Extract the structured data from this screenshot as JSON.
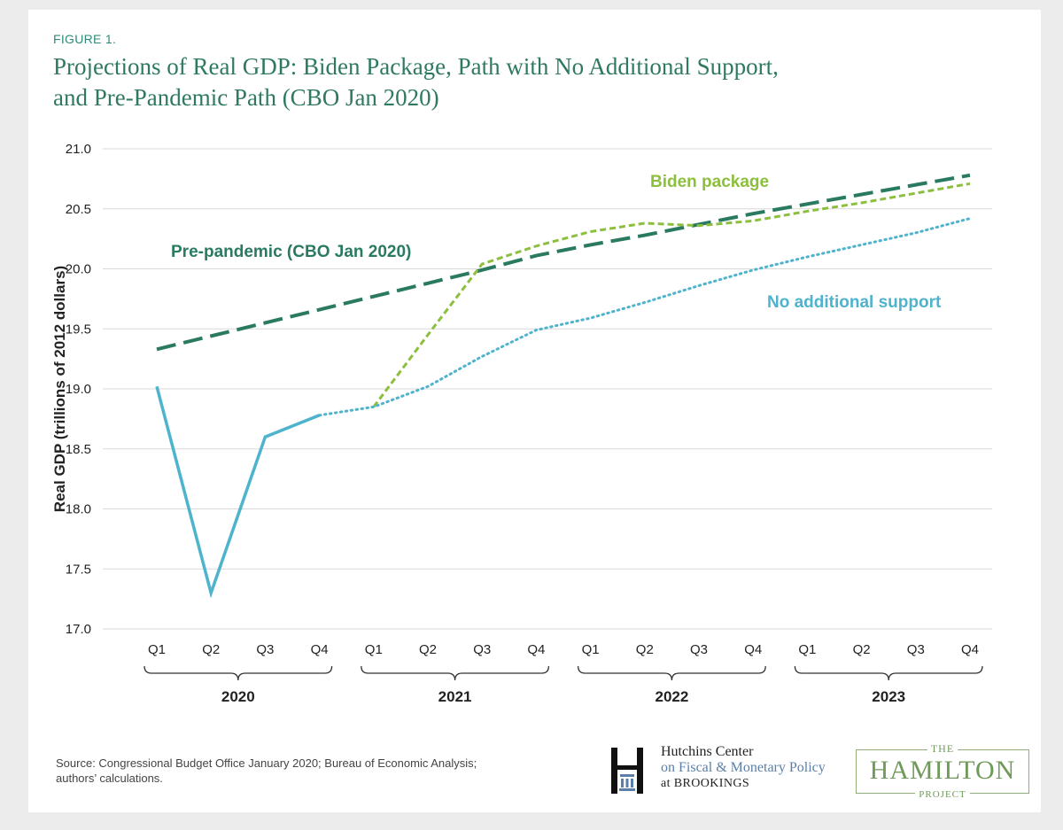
{
  "figure_label": "FIGURE 1.",
  "title_line1": "Projections of Real GDP: Biden Package, Path with No Additional Support,",
  "title_line2": "and Pre-Pandemic Path (CBO Jan 2020)",
  "source_line1": "Source: Congressional Budget Office January 2020; Bureau of Economic Analysis;",
  "source_line2": "authors’ calculations.",
  "logos": {
    "hutchins_line1": "Hutchins Center",
    "hutchins_line2": "on Fiscal & Monetary Policy",
    "hutchins_line3": "at BROOKINGS",
    "hamilton_the": "THE",
    "hamilton_name": "HAMILTON",
    "hamilton_project": "PROJECT"
  },
  "colors": {
    "prepandemic": "#2a7a62",
    "biden": "#8dbf3f",
    "no_support": "#4eb3cc",
    "grid": "#d9d9d9",
    "axis_text": "#222222"
  },
  "chart_data": {
    "type": "line",
    "title": "Projections of Real GDP: Biden Package, Path with No Additional Support, and Pre-Pandemic Path (CBO Jan 2020)",
    "xlabel": "",
    "ylabel": "Real GDP (trillions of 2012 dollars)",
    "ylim": [
      17.0,
      21.0
    ],
    "yticks": [
      "17.0",
      "17.5",
      "18.0",
      "18.5",
      "19.0",
      "19.5",
      "20.0",
      "20.5",
      "21.0"
    ],
    "grid": true,
    "categories": [
      "Q1",
      "Q2",
      "Q3",
      "Q4",
      "Q1",
      "Q2",
      "Q3",
      "Q4",
      "Q1",
      "Q2",
      "Q3",
      "Q4",
      "Q1",
      "Q2",
      "Q3",
      "Q4"
    ],
    "years": [
      "2020",
      "2021",
      "2022",
      "2023"
    ],
    "series": [
      {
        "name": "Pre-pandemic (CBO Jan 2020)",
        "style": "longdash",
        "values": [
          19.33,
          19.44,
          19.55,
          19.66,
          19.77,
          19.88,
          19.99,
          20.11,
          20.2,
          20.28,
          20.37,
          20.46,
          20.54,
          20.62,
          20.7,
          20.78
        ]
      },
      {
        "name": "Biden package",
        "style": "dash",
        "values": [
          null,
          null,
          null,
          null,
          18.85,
          19.45,
          20.04,
          20.19,
          20.31,
          20.38,
          20.36,
          20.4,
          20.48,
          20.55,
          20.63,
          20.71
        ]
      },
      {
        "name": "No additional support",
        "style": "solid-then-dotted",
        "actual_through_index": 3,
        "values": [
          19.02,
          17.3,
          18.6,
          18.78,
          18.85,
          19.02,
          19.27,
          19.49,
          19.59,
          19.72,
          19.86,
          19.99,
          20.1,
          20.2,
          20.3,
          20.42
        ]
      }
    ],
    "annotations": [
      {
        "text": "Biden package",
        "series": "Biden package"
      },
      {
        "text": "Pre-pandemic (CBO Jan 2020)",
        "series": "Pre-pandemic (CBO Jan 2020)"
      },
      {
        "text": "No additional support",
        "series": "No additional support"
      }
    ]
  }
}
